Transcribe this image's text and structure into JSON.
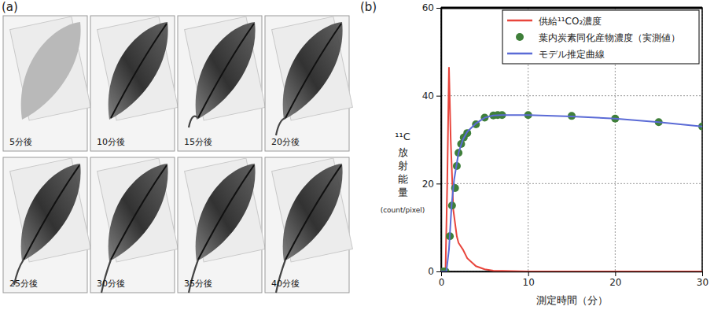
{
  "figure": {
    "panel_a": {
      "label": "(a)",
      "captions": [
        "5分後",
        "10分後",
        "15分後",
        "20分後",
        "25分後",
        "30分後",
        "35分後",
        "40分後"
      ]
    },
    "panel_b": {
      "label": "(b)"
    }
  },
  "chart_data": {
    "type": "line",
    "xlabel": "測定時間（分）",
    "ylabel": [
      "¹¹C",
      "放射能量",
      "(count/pixel)"
    ],
    "xlim": [
      0,
      30
    ],
    "xticks": [
      0,
      10,
      20,
      30
    ],
    "ylim": [
      0,
      60
    ],
    "yticks": [
      0,
      20,
      40,
      60
    ],
    "grid": true,
    "legend": "upper right",
    "series": [
      {
        "name": "供給¹¹CO₂濃度",
        "type": "line",
        "color": "#e8453c",
        "line_style": "solid",
        "x": [
          0,
          0.5,
          0.7,
          0.9,
          1.1,
          1.4,
          1.8,
          2,
          2.5,
          3,
          4,
          5,
          6,
          10,
          20,
          30
        ],
        "values": [
          0,
          0,
          20,
          46.5,
          30,
          14,
          8,
          6.5,
          5,
          3,
          1.2,
          0.5,
          0.2,
          0,
          0,
          0
        ]
      },
      {
        "name": "葉内炭素同化産物濃度（実測値）",
        "type": "scatter",
        "color": "#3f7f3a",
        "marker": "circle",
        "x": [
          0.25,
          0.5,
          1.0,
          1.25,
          1.6,
          1.8,
          2.0,
          2.3,
          2.6,
          3,
          4,
          5,
          6,
          6.5,
          7,
          10,
          15,
          20,
          25,
          30
        ],
        "values": [
          0,
          0,
          8,
          15,
          19,
          24,
          27,
          29,
          30.5,
          31.5,
          33.5,
          35,
          35.5,
          35.6,
          35.6,
          35.6,
          35.4,
          34.8,
          34,
          33
        ]
      },
      {
        "name": "モデル推定曲線",
        "type": "line",
        "color": "#5b6bd6",
        "line_style": "solid",
        "x": [
          0,
          0.6,
          0.9,
          1.2,
          1.5,
          2,
          2.5,
          3,
          4,
          5,
          6,
          7,
          10,
          15,
          20,
          25,
          30
        ],
        "values": [
          0,
          0,
          5,
          15,
          21,
          27,
          30,
          31.8,
          33.7,
          35,
          35.5,
          35.6,
          35.6,
          35.3,
          34.8,
          34,
          33
        ]
      }
    ]
  }
}
